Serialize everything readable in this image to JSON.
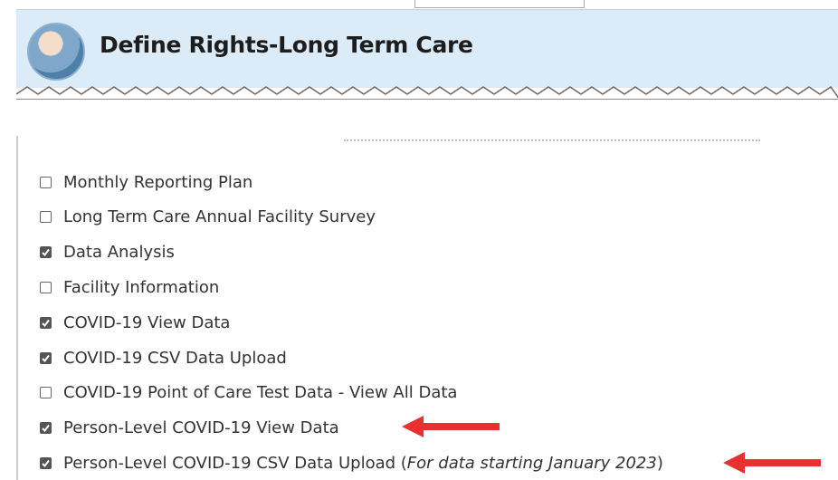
{
  "header": {
    "title": "Define Rights-Long Term Care"
  },
  "list": {
    "items": [
      {
        "label": "Monthly Reporting Plan",
        "checked": false
      },
      {
        "label": "Long Term Care Annual Facility Survey",
        "checked": false
      },
      {
        "label": "Data Analysis",
        "checked": true
      },
      {
        "label": "Facility Information",
        "checked": false
      },
      {
        "label": "COVID-19 View Data",
        "checked": true
      },
      {
        "label": "COVID-19 CSV Data Upload",
        "checked": true
      },
      {
        "label": "COVID-19 Point of Care Test Data - View All Data",
        "checked": false
      },
      {
        "label": "Person-Level COVID-19 View Data",
        "checked": true
      },
      {
        "label": "Person-Level COVID-19 CSV Data Upload (",
        "note": "For data starting January 2023",
        "label_end": ")",
        "checked": true
      }
    ]
  }
}
